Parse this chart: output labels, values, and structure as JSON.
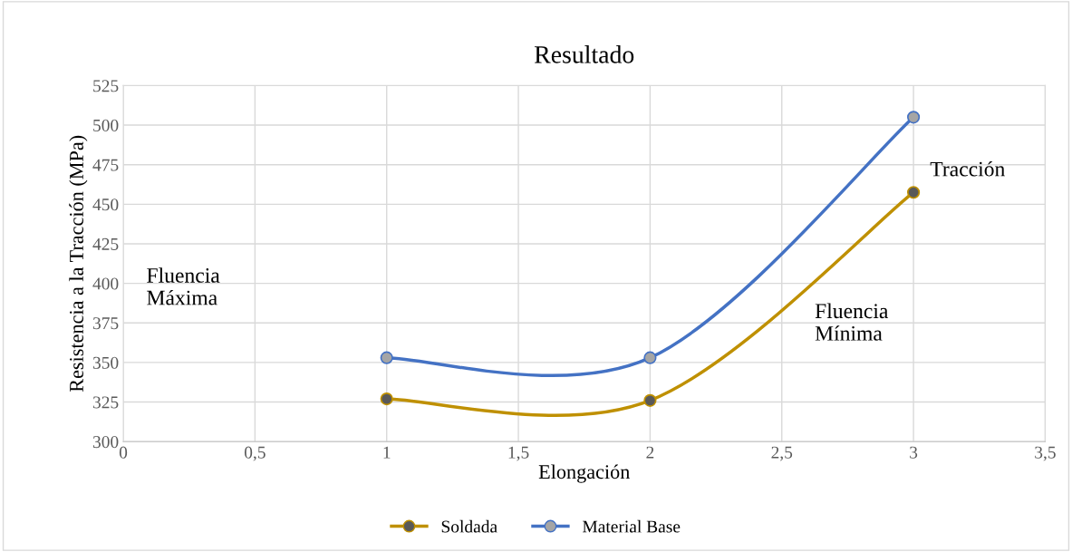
{
  "chart_data": {
    "type": "line",
    "title": "Resultado",
    "xlabel": "Elongación",
    "ylabel": "Resistencia a la Tracción (MPa)",
    "x": [
      1,
      2,
      3
    ],
    "series": [
      {
        "name": "Soldada",
        "color": "#bf9000",
        "values": [
          327,
          326,
          457.5
        ]
      },
      {
        "name": "Material Base",
        "color": "#4472c4",
        "values": [
          353,
          353,
          505
        ]
      }
    ],
    "xlim": [
      0,
      3.5
    ],
    "xticks": [
      0,
      {
        "value": 0.5,
        "label": "0,5"
      },
      1,
      {
        "value": 1.5,
        "label": "1,5"
      },
      2,
      {
        "value": 2.5,
        "label": "2,5"
      },
      3,
      {
        "value": 3.5,
        "label": "3,5"
      }
    ],
    "ylim": [
      300,
      525
    ],
    "yticks": [
      300,
      325,
      350,
      375,
      400,
      425,
      450,
      475,
      500,
      525
    ],
    "grid": true,
    "legend": "bottom",
    "marker": "circle",
    "line_style": "solid",
    "annotations": [
      "Fluencia\nMáxima",
      "Fluencia\nMínima",
      "Tracción"
    ]
  }
}
